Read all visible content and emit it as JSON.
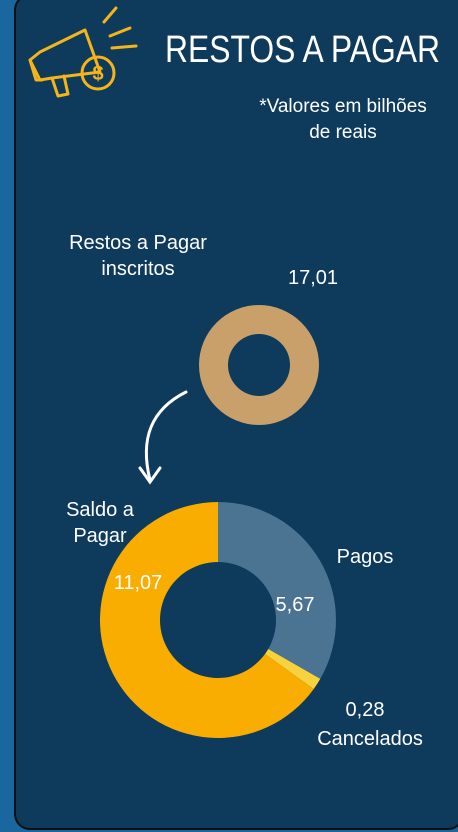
{
  "title": "RESTOS A PAGAR",
  "note": "*Valores em bilhões de reais",
  "chart_data": [
    {
      "type": "donut",
      "categories": [
        "Restos a Pagar inscritos"
      ],
      "values": [
        17.01
      ],
      "value_labels": [
        "17,01"
      ],
      "colors": [
        "#c9a06a"
      ]
    },
    {
      "type": "donut",
      "categories": [
        "Pagos",
        "Cancelados",
        "Saldo a Pagar"
      ],
      "values": [
        5.67,
        0.28,
        11.07
      ],
      "value_labels": [
        "5,67",
        "0,28",
        "11,07"
      ],
      "colors": [
        "#4a7491",
        "#f7d23e",
        "#f9ad00"
      ]
    }
  ]
}
